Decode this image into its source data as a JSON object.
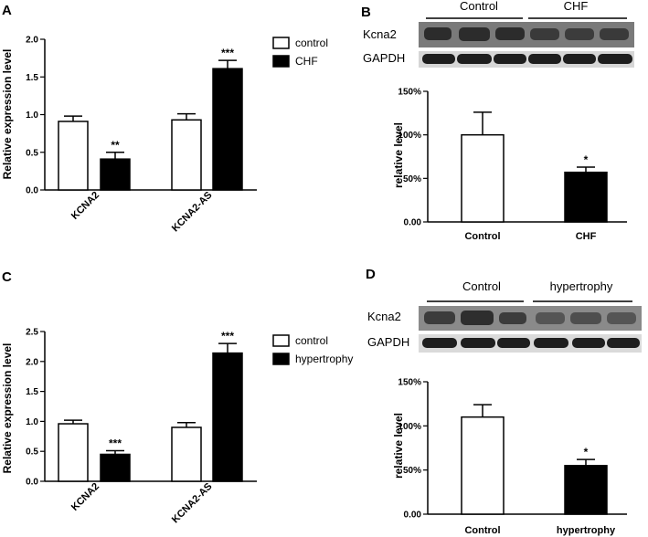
{
  "panels": {
    "A": {
      "letter": "A"
    },
    "B": {
      "letter": "B",
      "blot": {
        "groups": [
          "Control",
          "CHF"
        ],
        "rows": [
          "Kcna2",
          "GAPDH"
        ]
      }
    },
    "C": {
      "letter": "C"
    },
    "D": {
      "letter": "D",
      "blot": {
        "groups": [
          "Control",
          "hypertrophy"
        ],
        "rows": [
          "Kcna2",
          "GAPDH"
        ]
      }
    }
  },
  "colors": {
    "control": "#ffffff",
    "treated": "#000000",
    "stroke": "#000000"
  },
  "chart_data": [
    {
      "panel": "A",
      "type": "bar",
      "ylabel": "Relative expression level",
      "categories": [
        "KCNA2",
        "KCNA2-AS"
      ],
      "ylim": [
        0,
        2.0
      ],
      "yticks": [
        "0.0",
        "0.5",
        "1.0",
        "1.5",
        "2.0"
      ],
      "ytick_values": [
        0,
        0.5,
        1.0,
        1.5,
        2.0
      ],
      "legend": [
        "control",
        "CHF"
      ],
      "series": [
        {
          "name": "control",
          "values": [
            0.91,
            0.93
          ],
          "errors": [
            0.07,
            0.08
          ],
          "sig": [
            "",
            ""
          ]
        },
        {
          "name": "CHF",
          "values": [
            0.41,
            1.61
          ],
          "errors": [
            0.09,
            0.11
          ],
          "sig": [
            "**",
            "***"
          ]
        }
      ]
    },
    {
      "panel": "B",
      "type": "bar",
      "ylabel": "relative level",
      "categories": [
        "Control",
        "CHF"
      ],
      "ylim": [
        0,
        1.5
      ],
      "yticks": [
        "0.00",
        "50%",
        "100%",
        "150%"
      ],
      "ytick_values": [
        0,
        0.5,
        1.0,
        1.5
      ],
      "series": [
        {
          "values": [
            1.0,
            0.57
          ],
          "errors": [
            0.26,
            0.06
          ],
          "sig": [
            "",
            "*"
          ]
        }
      ]
    },
    {
      "panel": "C",
      "type": "bar",
      "ylabel": "Relative expression level",
      "categories": [
        "KCNA2",
        "KCNA2-AS"
      ],
      "ylim": [
        0,
        2.5
      ],
      "yticks": [
        "0.0",
        "0.5",
        "1.0",
        "1.5",
        "2.0",
        "2.5"
      ],
      "ytick_values": [
        0,
        0.5,
        1.0,
        1.5,
        2.0,
        2.5
      ],
      "legend": [
        "control",
        "hypertrophy"
      ],
      "series": [
        {
          "name": "control",
          "values": [
            0.96,
            0.9
          ],
          "errors": [
            0.06,
            0.08
          ],
          "sig": [
            "",
            ""
          ]
        },
        {
          "name": "hypertrophy",
          "values": [
            0.45,
            2.14
          ],
          "errors": [
            0.06,
            0.16
          ],
          "sig": [
            "***",
            "***"
          ]
        }
      ]
    },
    {
      "panel": "D",
      "type": "bar",
      "ylabel": "relative level",
      "categories": [
        "Control",
        "hypertrophy"
      ],
      "ylim": [
        0,
        1.5
      ],
      "yticks": [
        "0.00",
        "50%",
        "100%",
        "150%"
      ],
      "ytick_values": [
        0,
        0.5,
        1.0,
        1.5
      ],
      "series": [
        {
          "values": [
            1.1,
            0.55
          ],
          "errors": [
            0.14,
            0.07
          ],
          "sig": [
            "",
            "*"
          ]
        }
      ]
    }
  ]
}
